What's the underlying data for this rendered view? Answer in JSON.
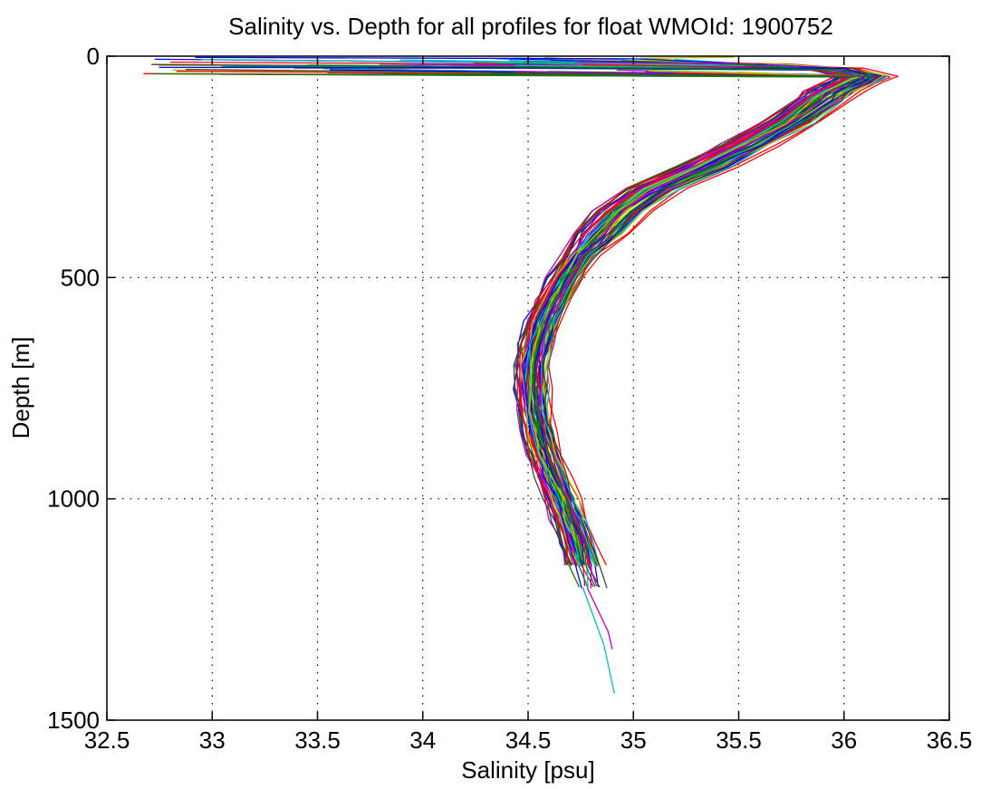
{
  "chart_data": {
    "type": "line",
    "title": "Salinity vs. Depth for all profiles for float WMOId: 1900752",
    "xlabel": "Salinity [psu]",
    "ylabel": "Depth [m]",
    "xlim": [
      32.5,
      36.5
    ],
    "ylim": [
      0,
      1500
    ],
    "y_reversed": true,
    "grid": true,
    "legend": "none",
    "xticks": [
      "32.5",
      "33",
      "33.5",
      "34",
      "34.5",
      "35",
      "35.5",
      "36",
      "36.5"
    ],
    "yticks": [
      "0",
      "500",
      "1000",
      "1500"
    ],
    "colors": [
      "#0000ff",
      "#008000",
      "#ff0000",
      "#00bfbf",
      "#bf00bf",
      "#bfbf00",
      "#404040"
    ],
    "mean_profile": {
      "depth": [
        5,
        20,
        30,
        45,
        60,
        80,
        100,
        150,
        200,
        250,
        300,
        350,
        400,
        450,
        500,
        550,
        600,
        650,
        700,
        750,
        800,
        850,
        900,
        950,
        1000,
        1050,
        1100,
        1150,
        1200
      ],
      "salinity": [
        35.0,
        35.6,
        35.95,
        36.1,
        36.05,
        35.95,
        35.9,
        35.75,
        35.55,
        35.35,
        35.1,
        34.95,
        34.85,
        34.75,
        34.68,
        34.62,
        34.57,
        34.54,
        34.52,
        34.52,
        34.53,
        34.55,
        34.58,
        34.62,
        34.66,
        34.7,
        34.74,
        34.77,
        34.8
      ]
    },
    "deep_profiles": [
      {
        "depth": [
          1200,
          1300,
          1340
        ],
        "salinity": [
          34.78,
          34.88,
          34.9
        ]
      },
      {
        "depth": [
          1200,
          1330,
          1440
        ],
        "salinity": [
          34.76,
          34.86,
          34.91
        ]
      }
    ]
  }
}
